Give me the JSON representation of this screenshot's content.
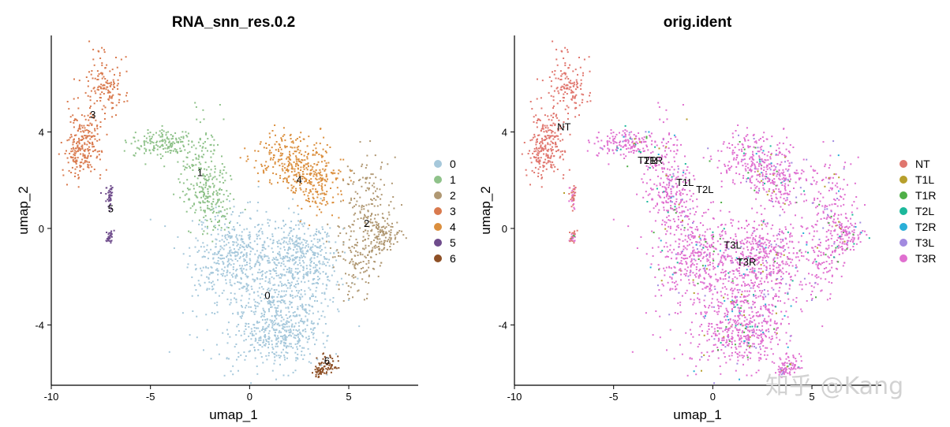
{
  "chart_data": [
    {
      "type": "scatter",
      "title": "RNA_snn_res.0.2",
      "xlabel": "umap_1",
      "ylabel": "umap_2",
      "xlim": [
        -10,
        8.5
      ],
      "ylim": [
        -6.5,
        8
      ],
      "xticks": [
        -10,
        -5,
        0,
        5
      ],
      "yticks": [
        -4,
        0,
        4
      ],
      "legend_position": "right",
      "series": [
        {
          "name": "0",
          "color": "#A6C8DB",
          "centroid": [
            0.9,
            -2.8
          ],
          "label_at": [
            0.9,
            -2.8
          ]
        },
        {
          "name": "1",
          "color": "#8FC28A",
          "centroid": [
            -2.5,
            2.3
          ],
          "label_at": [
            -2.5,
            2.3
          ]
        },
        {
          "name": "2",
          "color": "#B09873",
          "centroid": [
            5.9,
            0.2
          ],
          "label_at": [
            5.9,
            0.2
          ]
        },
        {
          "name": "3",
          "color": "#D97A4E",
          "centroid": [
            -7.9,
            4.7
          ],
          "label_at": [
            -7.9,
            4.7
          ]
        },
        {
          "name": "4",
          "color": "#DB8F3E",
          "centroid": [
            2.5,
            2.0
          ],
          "label_at": [
            2.5,
            2.0
          ]
        },
        {
          "name": "5",
          "color": "#6F4C8C",
          "centroid": [
            -7.0,
            0.8
          ],
          "label_at": [
            -7.0,
            0.8
          ]
        },
        {
          "name": "6",
          "color": "#8E5026",
          "centroid": [
            3.9,
            -5.5
          ],
          "label_at": [
            3.9,
            -5.5
          ]
        }
      ]
    },
    {
      "type": "scatter",
      "title": "orig.ident",
      "xlabel": "umap_1",
      "ylabel": "umap_2",
      "xlim": [
        -10,
        8.5
      ],
      "ylim": [
        -6.5,
        8
      ],
      "xticks": [
        -10,
        -5,
        0,
        5
      ],
      "yticks": [
        -4,
        0,
        4
      ],
      "legend_position": "right",
      "series": [
        {
          "name": "NT",
          "color": "#E0766E",
          "label_at": [
            -7.5,
            4.2
          ]
        },
        {
          "name": "T1L",
          "color": "#B79F2C",
          "label_at": [
            -1.4,
            1.9
          ]
        },
        {
          "name": "T1R",
          "color": "#4FAF47",
          "label_at": [
            -3.0,
            2.8
          ]
        },
        {
          "name": "T2L",
          "color": "#1CB89B",
          "label_at": [
            -0.4,
            1.6
          ]
        },
        {
          "name": "T2R",
          "color": "#2AAFD8",
          "label_at": [
            -3.3,
            2.8
          ]
        },
        {
          "name": "T3L",
          "color": "#A28AE0",
          "label_at": [
            1.0,
            -0.7
          ]
        },
        {
          "name": "T3R",
          "color": "#E06FD0",
          "label_at": [
            1.7,
            -1.4
          ]
        }
      ]
    }
  ],
  "watermark": "知乎 @Kang"
}
